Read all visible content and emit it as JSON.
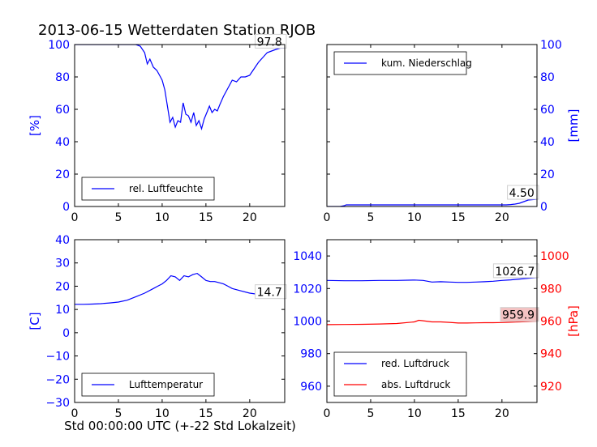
{
  "title": "2013-06-15 Wetterdaten Station RJOB",
  "xlabel": "Std 00:00:00 UTC (+-22 Std Lokalzeit)",
  "colors": {
    "blue": "#0000ff",
    "red": "#ff0000",
    "axis": "#000000"
  },
  "chart_data": [
    {
      "type": "line",
      "panel": "top-left",
      "title": "",
      "ylabel": "[%]",
      "ylabel_side": "left",
      "ylabel_color": "#0000ff",
      "xlim": [
        0,
        24
      ],
      "ylim": [
        0,
        100
      ],
      "xticks": [
        0,
        5,
        10,
        15,
        20
      ],
      "yticks": [
        0,
        20,
        40,
        60,
        80,
        100
      ],
      "ytick_side": "left",
      "ytick_color": "#0000ff",
      "legend": "bottom-left",
      "annotation": {
        "text": "97.8",
        "x": 24,
        "y": 97.8
      },
      "series": [
        {
          "name": "rel. Luftfeuchte",
          "color": "#0000ff",
          "x": [
            0,
            2,
            4,
            6,
            7,
            7.5,
            8,
            8.3,
            8.6,
            9,
            9.4,
            9.8,
            10,
            10.3,
            10.6,
            10.9,
            11.2,
            11.5,
            11.8,
            12.1,
            12.4,
            12.7,
            13,
            13.3,
            13.6,
            13.9,
            14.2,
            14.5,
            14.8,
            15.1,
            15.4,
            15.7,
            16,
            16.3,
            16.6,
            17,
            17.5,
            18,
            18.5,
            19,
            19.5,
            20,
            20.5,
            21,
            21.5,
            22,
            22.5,
            23,
            23.5,
            24
          ],
          "y": [
            100,
            100,
            100,
            100,
            100,
            99,
            95,
            88,
            91,
            86,
            84,
            80,
            78,
            72,
            62,
            52,
            55,
            49,
            53,
            52,
            64,
            57,
            56,
            52,
            58,
            50,
            53,
            48,
            54,
            58,
            62,
            58,
            60,
            59,
            63,
            68,
            73,
            78,
            77,
            80,
            80,
            81,
            85,
            89,
            92,
            95,
            96,
            97,
            97.8,
            97.8
          ]
        }
      ]
    },
    {
      "type": "line",
      "panel": "top-right",
      "title": "",
      "ylabel": "[mm]",
      "ylabel_side": "right",
      "ylabel_color": "#0000ff",
      "xlim": [
        0,
        24
      ],
      "ylim": [
        0,
        100
      ],
      "xticks": [
        0,
        5,
        10,
        15,
        20
      ],
      "yticks": [
        0,
        20,
        40,
        60,
        80,
        100
      ],
      "ytick_side": "right",
      "ytick_color": "#0000ff",
      "legend": "top-left",
      "annotation": {
        "text": "4.50",
        "x": 24,
        "y": 4.5
      },
      "series": [
        {
          "name": "kum. Niederschlag",
          "color": "#0000ff",
          "x": [
            0,
            1.5,
            2,
            2.2,
            10,
            15,
            20,
            20.5,
            21,
            21.5,
            22,
            22.5,
            23,
            24
          ],
          "y": [
            0,
            0,
            0.5,
            1,
            1,
            1,
            1,
            1,
            1.2,
            1.5,
            2,
            3,
            4,
            4.5
          ]
        }
      ]
    },
    {
      "type": "line",
      "panel": "bottom-left",
      "title": "",
      "ylabel": "[C]",
      "ylabel_side": "left",
      "ylabel_color": "#0000ff",
      "xlim": [
        0,
        24
      ],
      "ylim": [
        -30,
        40
      ],
      "xticks": [
        0,
        5,
        10,
        15,
        20
      ],
      "yticks": [
        -30,
        -20,
        -10,
        0,
        10,
        20,
        30,
        40
      ],
      "ytick_side": "left",
      "ytick_color": "#0000ff",
      "legend": "bottom-left",
      "annotation": {
        "text": "14.7",
        "x": 24,
        "y": 14.7
      },
      "series": [
        {
          "name": "Lufttemperatur",
          "color": "#0000ff",
          "x": [
            0,
            1,
            2,
            3,
            4,
            5,
            6,
            7,
            8,
            9,
            9.5,
            10,
            10.5,
            11,
            11.5,
            12,
            12.5,
            13,
            13.5,
            14,
            14.5,
            15,
            15.5,
            16,
            16.5,
            17,
            17.5,
            18,
            19,
            20,
            21,
            22,
            23,
            24
          ],
          "y": [
            12.2,
            12.2,
            12.3,
            12.5,
            12.8,
            13.2,
            14,
            15.5,
            17,
            19,
            20,
            21,
            22.5,
            24.5,
            24,
            22.5,
            24.5,
            24,
            25,
            25.5,
            24,
            22.5,
            22,
            22,
            21.5,
            21,
            20,
            19,
            18,
            17,
            16.5,
            16,
            15.2,
            14.7
          ]
        }
      ]
    },
    {
      "type": "line",
      "panel": "bottom-right",
      "title": "",
      "ylabel": "[hPa]",
      "ylabel_side": "right",
      "ylabel_color": "#ff0000",
      "xlim": [
        0,
        24
      ],
      "ylim_left": [
        950,
        1050
      ],
      "yticks_left": [
        960,
        980,
        1000,
        1020,
        1040
      ],
      "ytick_left_color": "#0000ff",
      "ylim_right": [
        910,
        1010
      ],
      "yticks_right": [
        920,
        940,
        960,
        980,
        1000
      ],
      "ytick_right_color": "#ff0000",
      "xticks": [
        0,
        5,
        10,
        15,
        20
      ],
      "legend": "bottom-left",
      "annotations": [
        {
          "text": "1026.7",
          "x": 24,
          "y": 1026.7,
          "axis": "left"
        },
        {
          "text": "959.9",
          "x": 24,
          "y": 959.9,
          "axis": "right",
          "highlight": "#f4c2c2"
        }
      ],
      "series": [
        {
          "name": "red. Luftdruck",
          "color": "#0000ff",
          "axis": "left",
          "x": [
            0,
            2,
            4,
            6,
            8,
            10,
            11,
            12,
            13,
            14,
            15,
            16,
            17,
            18,
            19,
            20,
            21,
            22,
            23,
            24
          ],
          "y": [
            1025,
            1024.8,
            1024.8,
            1025,
            1025,
            1025.2,
            1025,
            1024,
            1024.2,
            1024,
            1023.8,
            1023.8,
            1024,
            1024.2,
            1024.5,
            1025,
            1025.3,
            1025.8,
            1026.3,
            1026.7
          ]
        },
        {
          "name": "abs. Luftdruck",
          "color": "#ff0000",
          "axis": "right",
          "x": [
            0,
            2,
            4,
            6,
            8,
            10,
            10.5,
            11,
            12,
            13,
            14,
            15,
            16,
            17,
            18,
            19,
            20,
            21,
            22,
            23,
            24
          ],
          "y": [
            957.8,
            957.9,
            958,
            958.2,
            958.5,
            959.5,
            960.5,
            960.2,
            959.5,
            959.5,
            959.2,
            958.8,
            958.8,
            958.9,
            959,
            959,
            959.1,
            959.3,
            959.5,
            959.7,
            959.9
          ]
        }
      ]
    }
  ]
}
